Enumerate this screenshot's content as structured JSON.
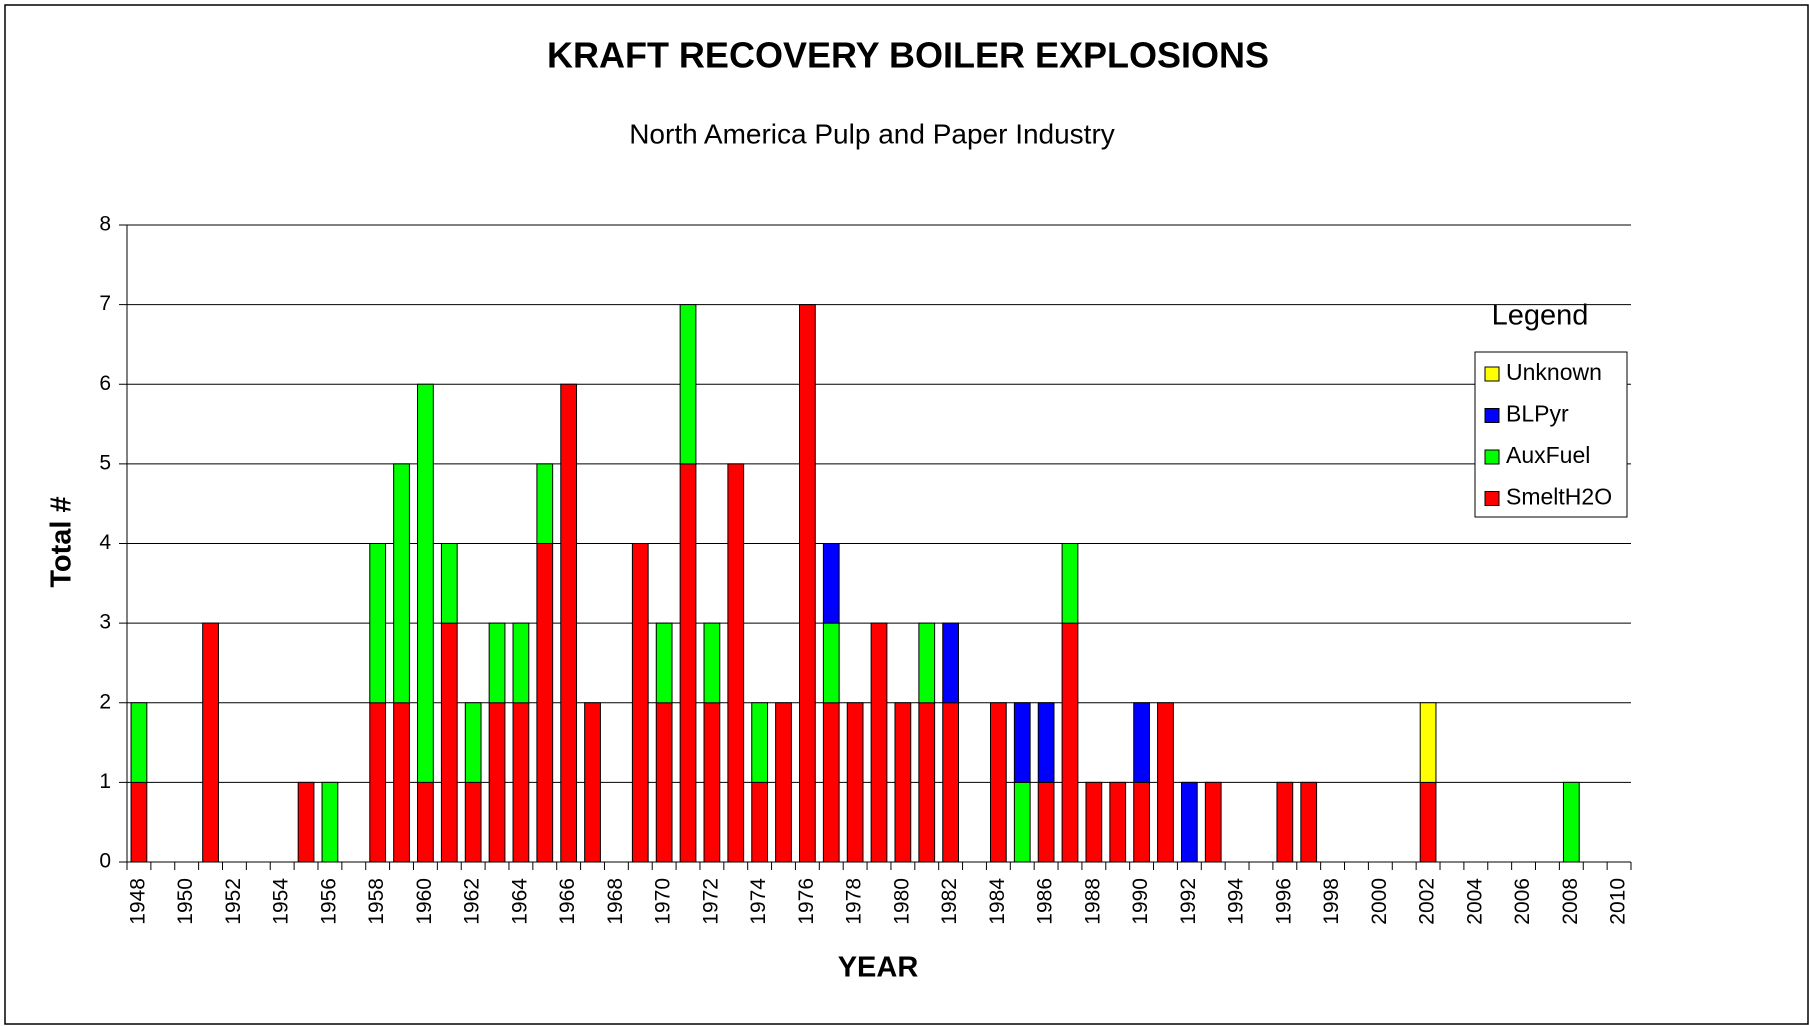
{
  "chart_data": {
    "type": "stacked_bar",
    "title": "KRAFT RECOVERY BOILER EXPLOSIONS",
    "subtitle": "North America Pulp and Paper Industry",
    "x_label": "YEAR",
    "y_label": "Total #",
    "legend_title": "Legend",
    "legend": "right",
    "grid": true,
    "categories": [
      "1948",
      null,
      "1950",
      null,
      "1952",
      null,
      "1954",
      null,
      "1956",
      null,
      "1958",
      null,
      "1960",
      null,
      "1962",
      null,
      "1964",
      null,
      "1966",
      null,
      "1968",
      null,
      "1970",
      null,
      "1972",
      null,
      "1974",
      null,
      "1976",
      null,
      "1978",
      null,
      "1980",
      null,
      "1982",
      null,
      "1984",
      null,
      "1986",
      null,
      "1988",
      null,
      "1990",
      null,
      "1992",
      null,
      "1994",
      null,
      "1996",
      null,
      "1998",
      null,
      "2000",
      null,
      "2002",
      null,
      "2004",
      null,
      "2006",
      null,
      "2008",
      null,
      "2010"
    ],
    "series": [
      {
        "name": "SmeltH2O",
        "color": "#ff0000",
        "values": [
          1,
          0,
          0,
          3,
          0,
          0,
          0,
          1,
          0,
          0,
          2,
          2,
          1,
          3,
          1,
          2,
          2,
          4,
          6,
          2,
          0,
          4,
          2,
          5,
          2,
          5,
          1,
          2,
          7,
          2,
          2,
          3,
          2,
          2,
          2,
          0,
          2,
          0,
          1,
          3,
          1,
          1,
          1,
          2,
          0,
          1,
          0,
          0,
          1,
          1,
          0,
          0,
          0,
          0,
          1,
          0,
          0,
          0,
          0,
          0,
          0,
          0,
          0
        ]
      },
      {
        "name": "AuxFuel",
        "color": "#00ff00",
        "values": [
          1,
          0,
          0,
          0,
          0,
          0,
          0,
          0,
          1,
          0,
          2,
          3,
          5,
          1,
          1,
          1,
          1,
          1,
          0,
          0,
          0,
          0,
          1,
          2,
          1,
          0,
          1,
          0,
          0,
          1,
          0,
          0,
          0,
          1,
          0,
          0,
          0,
          1,
          0,
          1,
          0,
          0,
          0,
          0,
          0,
          0,
          0,
          0,
          0,
          0,
          0,
          0,
          0,
          0,
          0,
          0,
          0,
          0,
          0,
          0,
          1,
          0,
          0
        ]
      },
      {
        "name": "BLPyr",
        "color": "#0000ff",
        "values": [
          0,
          0,
          0,
          0,
          0,
          0,
          0,
          0,
          0,
          0,
          0,
          0,
          0,
          0,
          0,
          0,
          0,
          0,
          0,
          0,
          0,
          0,
          0,
          0,
          0,
          0,
          0,
          0,
          0,
          1,
          0,
          0,
          0,
          0,
          1,
          0,
          0,
          1,
          1,
          0,
          0,
          0,
          1,
          0,
          1,
          0,
          0,
          0,
          0,
          0,
          0,
          0,
          0,
          0,
          0,
          0,
          0,
          0,
          0,
          0,
          0,
          0,
          0
        ]
      },
      {
        "name": "Unknown",
        "color": "#ffff00",
        "values": [
          0,
          0,
          0,
          0,
          0,
          0,
          0,
          0,
          0,
          0,
          0,
          0,
          0,
          0,
          0,
          0,
          0,
          0,
          0,
          0,
          0,
          0,
          0,
          0,
          0,
          0,
          0,
          0,
          0,
          0,
          0,
          0,
          0,
          0,
          0,
          0,
          0,
          0,
          0,
          0,
          0,
          0,
          0,
          0,
          0,
          0,
          0,
          0,
          0,
          0,
          0,
          0,
          0,
          0,
          1,
          0,
          0,
          0,
          0,
          0,
          0,
          0,
          0
        ]
      }
    ],
    "ylim": [
      0,
      8
    ],
    "yticks": [
      0,
      1,
      2,
      3,
      4,
      5,
      6,
      7,
      8
    ]
  }
}
